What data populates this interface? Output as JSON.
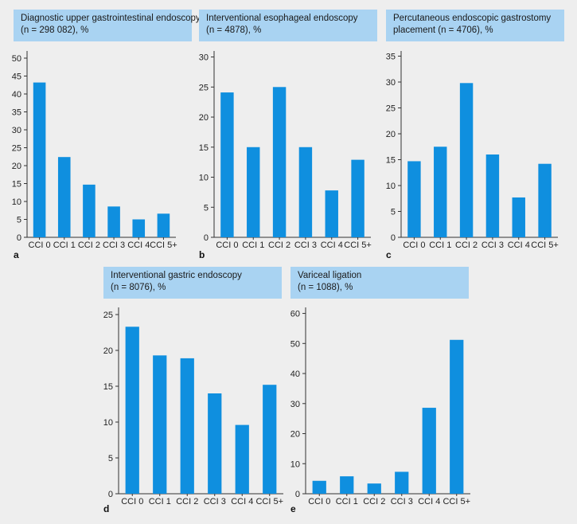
{
  "colors": {
    "bar": "#0f8fdf",
    "axis": "#333333",
    "header_bg": "#a9d3f2",
    "background": "#eeeeee"
  },
  "chart_data": [
    {
      "letter": "a",
      "type": "bar",
      "title_line1": "Diagnostic upper gastrointestinal endoscopy",
      "title_line2": "(n = 298 082), %",
      "categories": [
        "CCI 0",
        "CCI 1",
        "CCI 2",
        "CCI 3",
        "CCI 4",
        "CCI 5+"
      ],
      "values": [
        43.2,
        22.4,
        14.7,
        8.6,
        5.0,
        6.6
      ],
      "yticks": [
        0,
        5,
        10,
        15,
        20,
        25,
        30,
        35,
        40,
        45,
        50
      ],
      "ylim": [
        0,
        52
      ]
    },
    {
      "letter": "b",
      "type": "bar",
      "title_line1": "Interventional esophageal endoscopy",
      "title_line2": "(n = 4878), %",
      "categories": [
        "CCI 0",
        "CCI 1",
        "CCI 2",
        "CCI 3",
        "CCI 4",
        "CCI 5+"
      ],
      "values": [
        24.1,
        15.0,
        25.0,
        15.0,
        7.8,
        12.9
      ],
      "yticks": [
        0,
        5,
        10,
        15,
        20,
        25,
        30
      ],
      "ylim": [
        0,
        31
      ]
    },
    {
      "letter": "c",
      "type": "bar",
      "title_line1": "Percutaneous endoscopic gastrostomy",
      "title_line2": "placement (n = 4706), %",
      "categories": [
        "CCI 0",
        "CCI 1",
        "CCI 2",
        "CCI 3",
        "CCI 4",
        "CCI 5+"
      ],
      "values": [
        14.7,
        17.5,
        29.8,
        16.0,
        7.7,
        14.2
      ],
      "yticks": [
        0,
        5,
        10,
        15,
        20,
        25,
        30,
        35
      ],
      "ylim": [
        0,
        36
      ]
    },
    {
      "letter": "d",
      "type": "bar",
      "title_line1": "Interventional gastric endoscopy",
      "title_line2": "(n = 8076), %",
      "categories": [
        "CCI 0",
        "CCI 1",
        "CCI 2",
        "CCI 3",
        "CCI 4",
        "CCI 5+"
      ],
      "values": [
        23.3,
        19.3,
        18.9,
        14.0,
        9.6,
        15.2
      ],
      "yticks": [
        0,
        5,
        10,
        15,
        20,
        25
      ],
      "ylim": [
        0,
        26
      ]
    },
    {
      "letter": "e",
      "type": "bar",
      "title_line1": "Variceal ligation",
      "title_line2": "(n = 1088), %",
      "categories": [
        "CCI 0",
        "CCI 1",
        "CCI 2",
        "CCI 3",
        "CCI 4",
        "CCI 5+"
      ],
      "values": [
        4.3,
        5.8,
        3.4,
        7.3,
        28.6,
        51.2
      ],
      "yticks": [
        0,
        10,
        20,
        30,
        40,
        50,
        60
      ],
      "ylim": [
        0,
        62
      ]
    }
  ]
}
